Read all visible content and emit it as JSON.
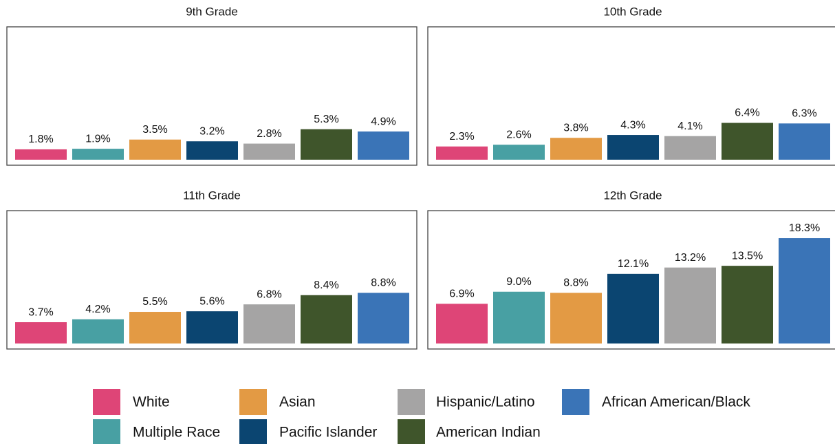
{
  "chart_data": [
    {
      "type": "bar",
      "title": "9th Grade",
      "values": [
        1.8,
        1.9,
        3.5,
        3.2,
        2.8,
        5.3,
        4.9
      ],
      "value_labels": [
        "1.8%",
        "1.9%",
        "3.5%",
        "3.2%",
        "2.8%",
        "5.3%",
        "4.9%"
      ]
    },
    {
      "type": "bar",
      "title": "10th Grade",
      "values": [
        2.3,
        2.6,
        3.8,
        4.3,
        4.1,
        6.4,
        6.3
      ],
      "value_labels": [
        "2.3%",
        "2.6%",
        "3.8%",
        "4.3%",
        "4.1%",
        "6.4%",
        "6.3%"
      ]
    },
    {
      "type": "bar",
      "title": "11th Grade",
      "values": [
        3.7,
        4.2,
        5.5,
        5.6,
        6.8,
        8.4,
        8.8
      ],
      "value_labels": [
        "3.7%",
        "4.2%",
        "5.5%",
        "5.6%",
        "6.8%",
        "8.4%",
        "8.8%"
      ]
    },
    {
      "type": "bar",
      "title": "12th Grade",
      "values": [
        6.9,
        9.0,
        8.8,
        12.1,
        13.2,
        13.5,
        18.3
      ],
      "value_labels": [
        "6.9%",
        "9.0%",
        "8.8%",
        "12.1%",
        "13.2%",
        "13.5%",
        "18.3%"
      ]
    }
  ],
  "legend": {
    "names": [
      "White",
      "Multiple Race",
      "Asian",
      "Pacific Islander",
      "Hispanic/Latino",
      "American Indian",
      "African American/Black"
    ],
    "colors": [
      "#de4577",
      "#48a0a3",
      "#e39a44",
      "#0b4571",
      "#a5a4a4",
      "#3f552b",
      "#3a74b7"
    ]
  }
}
